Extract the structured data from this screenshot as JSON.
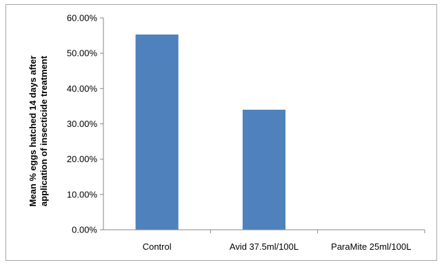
{
  "chart_data": {
    "type": "bar",
    "title": "",
    "xlabel": "",
    "ylabel_lines": [
      "Mean % eggs hatched 14 days after",
      "application of insecticide treatment"
    ],
    "categories": [
      "Control",
      "Avid 37.5ml/100L",
      "ParaMite 25ml/100L"
    ],
    "values": [
      55.3,
      34.0,
      0.0
    ],
    "value_format": "percent_2dp",
    "ylim": [
      0,
      60
    ],
    "yticks": [
      0,
      10,
      20,
      30,
      40,
      50,
      60
    ],
    "ytick_labels": [
      "0.00%",
      "10.00%",
      "20.00%",
      "30.00%",
      "40.00%",
      "50.00%",
      "60.00%"
    ],
    "grid": false,
    "legend": "none",
    "colors": {
      "bar": "#4f81bd",
      "axis": "#868686",
      "tick_label": "#000000"
    }
  }
}
